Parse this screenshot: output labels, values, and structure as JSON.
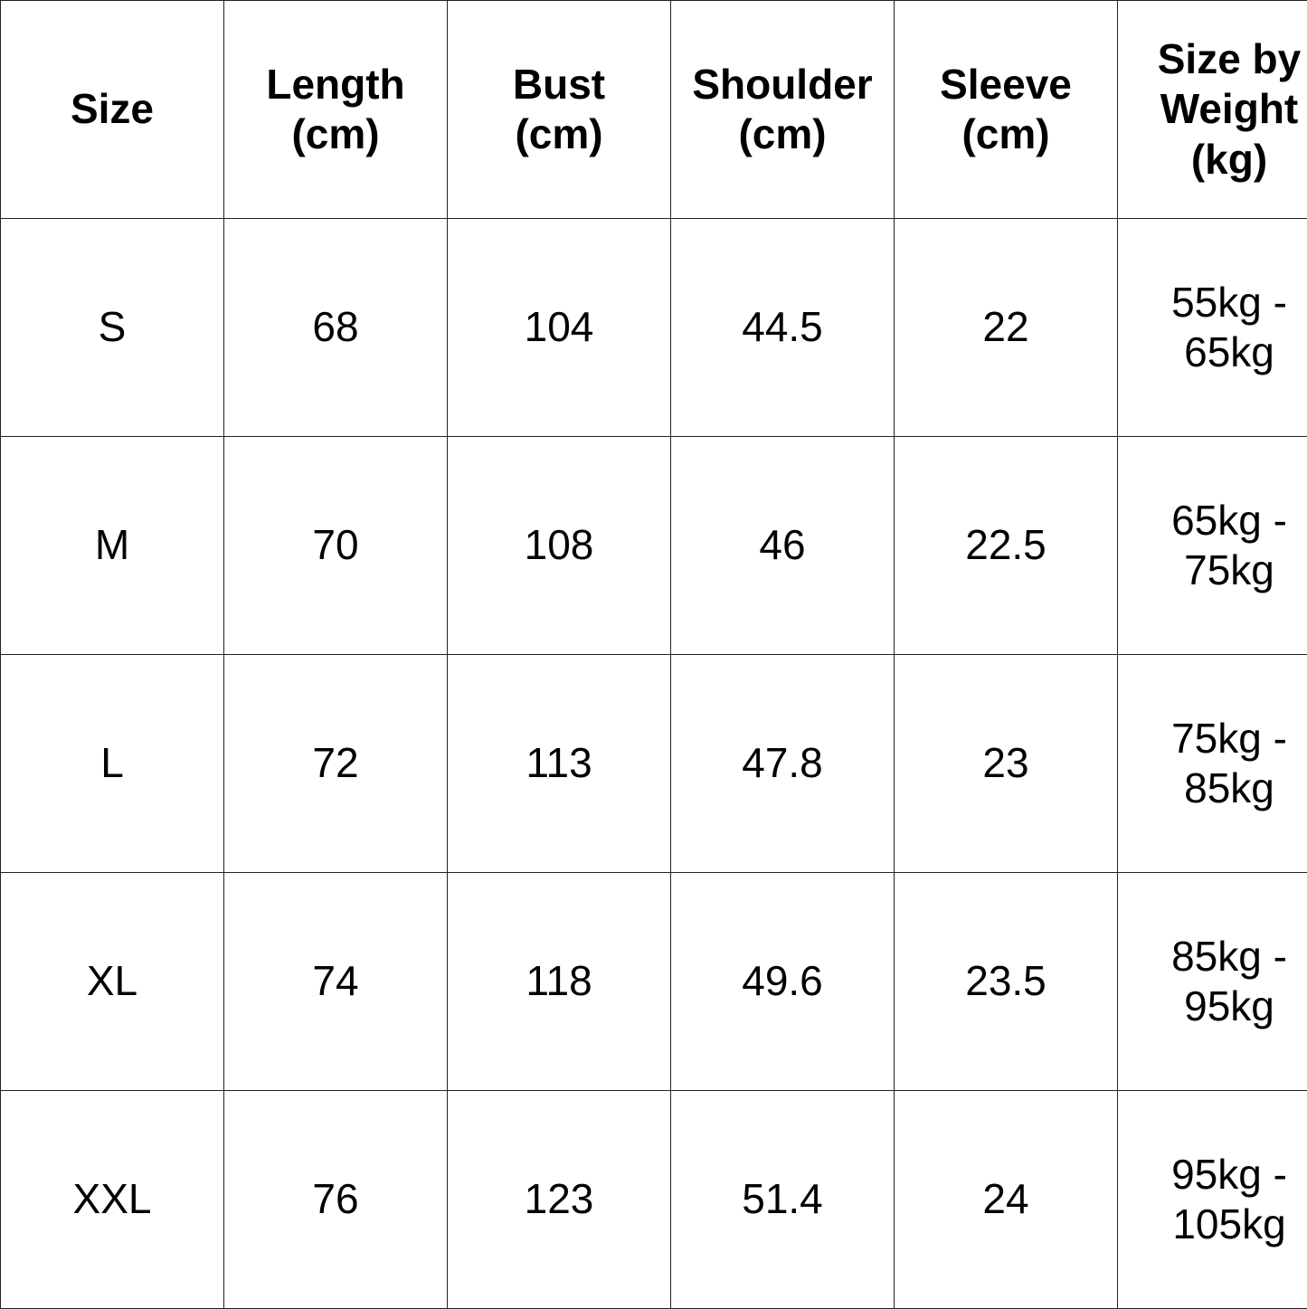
{
  "headers": [
    [
      "Size"
    ],
    [
      "Length",
      "(cm)"
    ],
    [
      "Bust",
      "(cm)"
    ],
    [
      "Shoulder",
      "(cm)"
    ],
    [
      "Sleeve",
      "(cm)"
    ],
    [
      "Size by",
      "Weight",
      "(kg)"
    ]
  ],
  "rows": [
    [
      "S",
      "68",
      "104",
      "44.5",
      "22",
      [
        "55kg -",
        "65kg"
      ]
    ],
    [
      "M",
      "70",
      "108",
      "46",
      "22.5",
      [
        "65kg -",
        "75kg"
      ]
    ],
    [
      "L",
      "72",
      "113",
      "47.8",
      "23",
      [
        "75kg -",
        "85kg"
      ]
    ],
    [
      "XL",
      "74",
      "118",
      "49.6",
      "23.5",
      [
        "85kg -",
        "95kg"
      ]
    ],
    [
      "XXL",
      "76",
      "123",
      "51.4",
      "24",
      [
        "95kg -",
        "105kg"
      ]
    ]
  ]
}
